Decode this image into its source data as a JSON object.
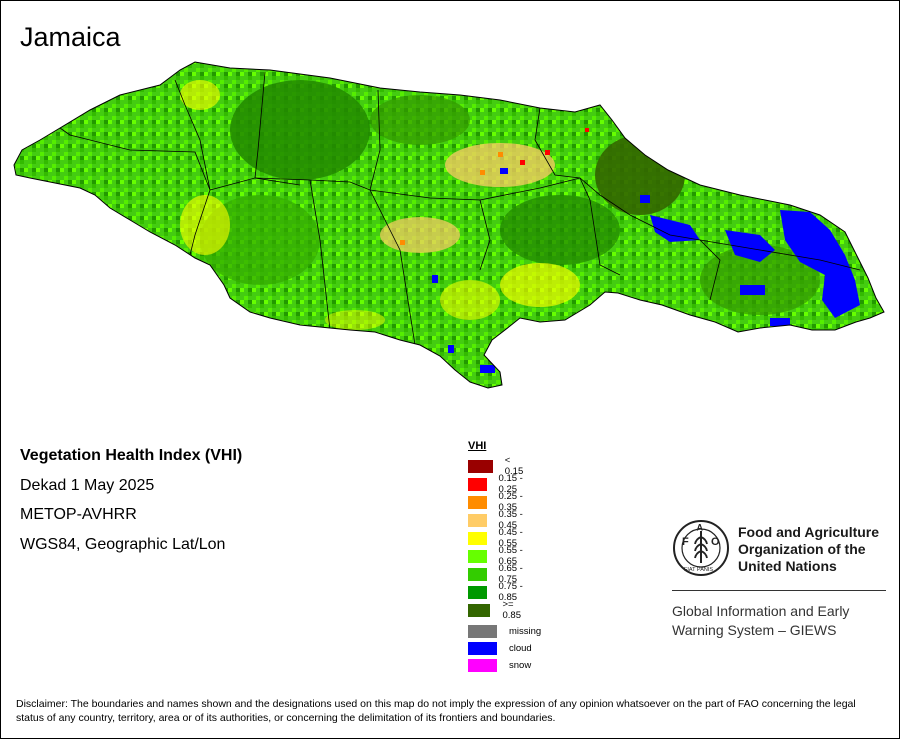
{
  "map": {
    "title": "Jamaica",
    "info": {
      "index_name": "Vegetation Health Index (VHI)",
      "period": "Dekad 1 May 2025",
      "sensor": "METOP-AVHRR",
      "projection": "WGS84, Geographic Lat/Lon"
    },
    "legend": {
      "title": "VHI",
      "classes": [
        {
          "label": "< 0.15",
          "color": "#990000"
        },
        {
          "label": "0.15 - 0.25",
          "color": "#ff0000"
        },
        {
          "label": "0.25 - 0.35",
          "color": "#ff8c00"
        },
        {
          "label": "0.35 - 0.45",
          "color": "#ffcc66"
        },
        {
          "label": "0.45 - 0.55",
          "color": "#ffff00"
        },
        {
          "label": "0.55 - 0.65",
          "color": "#66ff00"
        },
        {
          "label": "0.65 - 0.75",
          "color": "#33cc00"
        },
        {
          "label": "0.75 - 0.85",
          "color": "#009900"
        },
        {
          "label": ">= 0.85",
          "color": "#336600"
        }
      ],
      "other": [
        {
          "label": "missing",
          "color": "#777777"
        },
        {
          "label": "cloud",
          "color": "#0000ff"
        },
        {
          "label": "snow",
          "color": "#ff00ff"
        }
      ]
    },
    "organization": {
      "logo_letters": "FAO",
      "logo_motto": "FIAT PANIS",
      "name_line1": "Food and Agriculture",
      "name_line2": "Organization of the",
      "name_line3": "United Nations",
      "system_line1": "Global Information and Early",
      "system_line2": "Warning System – GIEWS"
    },
    "disclaimer": "Disclaimer: The boundaries and names shown and the designations used on this map do not imply the expression of any opinion whatsoever on the part of FAO concerning the legal status of any country, territory, area or of its authorities, or concerning the delimitation of its frontiers and boundaries."
  }
}
